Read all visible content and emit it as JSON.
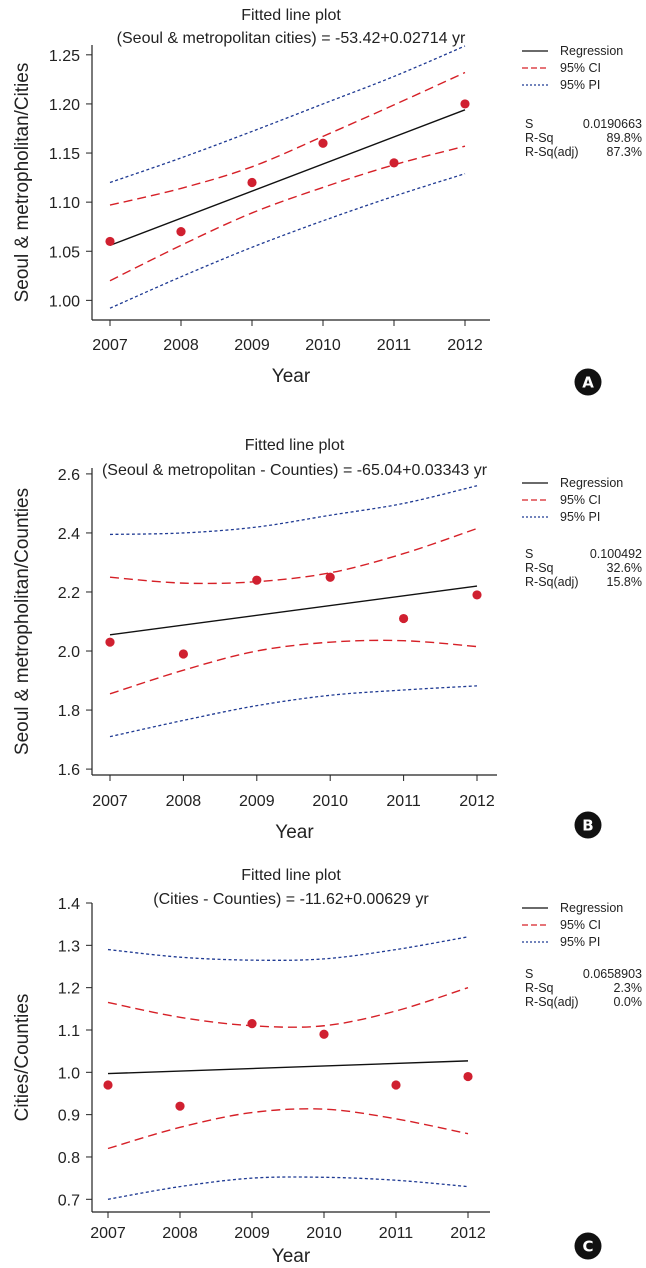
{
  "colors": {
    "regression": "#111111",
    "ci": "#d62027",
    "pi": "#1f3a93",
    "points": "#d02030",
    "badge": "#111111"
  },
  "chart_data": [
    {
      "type": "scatter",
      "badge": "A",
      "title": "Fitted line plot",
      "subtitle": "(Seoul & metropolitan cities) = -53.42+0.02714 yr",
      "xlabel": "Year",
      "ylabel": "Seoul & metropholitan/Cities",
      "x_ticks": [
        "2007",
        "2008",
        "2009",
        "2010",
        "2011",
        "2012"
      ],
      "y_ticks": [
        "1.00",
        "1.05",
        "1.10",
        "1.15",
        "1.20",
        "1.25"
      ],
      "xlim": [
        2007,
        2012
      ],
      "ylim": [
        0.98,
        1.26
      ],
      "points": {
        "x": [
          2007,
          2008,
          2009,
          2010,
          2011,
          2012
        ],
        "y": [
          1.06,
          1.07,
          1.12,
          1.16,
          1.14,
          1.2
        ]
      },
      "regression": {
        "x": [
          2007,
          2012
        ],
        "y": [
          1.056,
          1.194
        ]
      },
      "ci_upper": {
        "x": [
          2007,
          2008,
          2009,
          2010,
          2011,
          2012
        ],
        "y": [
          1.097,
          1.114,
          1.136,
          1.167,
          1.199,
          1.232
        ]
      },
      "ci_lower": {
        "x": [
          2007,
          2008,
          2009,
          2010,
          2011,
          2012
        ],
        "y": [
          1.02,
          1.056,
          1.089,
          1.115,
          1.138,
          1.157
        ]
      },
      "pi_upper": {
        "x": [
          2007,
          2008,
          2009,
          2010,
          2011,
          2012
        ],
        "y": [
          1.12,
          1.145,
          1.172,
          1.2,
          1.228,
          1.259
        ]
      },
      "pi_lower": {
        "x": [
          2007,
          2008,
          2009,
          2010,
          2011,
          2012
        ],
        "y": [
          0.992,
          1.024,
          1.054,
          1.081,
          1.106,
          1.129
        ]
      },
      "legend": [
        {
          "label": "Regression",
          "style": "solid"
        },
        {
          "label": "95% CI",
          "style": "dash"
        },
        {
          "label": "95% PI",
          "style": "dot"
        }
      ],
      "stats": [
        {
          "label": "S",
          "value": "0.0190663"
        },
        {
          "label": "R-Sq",
          "value": "89.8%"
        },
        {
          "label": "R-Sq(adj)",
          "value": "87.3%"
        }
      ]
    },
    {
      "type": "scatter",
      "badge": "B",
      "title": "Fitted line plot",
      "subtitle": "(Seoul & metropolitan - Counties) = -65.04+0.03343 yr",
      "xlabel": "Year",
      "ylabel": "Seoul & metropholitan/Counties",
      "x_ticks": [
        "2007",
        "2008",
        "2009",
        "2010",
        "2011",
        "2012"
      ],
      "y_ticks": [
        "1.6",
        "1.8",
        "2.0",
        "2.2",
        "2.4",
        "2.6"
      ],
      "xlim": [
        2007,
        2012
      ],
      "ylim": [
        1.58,
        2.62
      ],
      "points": {
        "x": [
          2007,
          2008,
          2009,
          2010,
          2011,
          2012
        ],
        "y": [
          2.03,
          1.99,
          2.24,
          2.25,
          2.11,
          2.19
        ]
      },
      "regression": {
        "x": [
          2007,
          2012
        ],
        "y": [
          2.055,
          2.22
        ]
      },
      "ci_upper": {
        "x": [
          2007,
          2008,
          2009,
          2010,
          2011,
          2012
        ],
        "y": [
          2.25,
          2.23,
          2.235,
          2.265,
          2.33,
          2.415
        ]
      },
      "ci_lower": {
        "x": [
          2007,
          2008,
          2009,
          2010,
          2011,
          2012
        ],
        "y": [
          1.855,
          1.935,
          2.0,
          2.03,
          2.035,
          2.015
        ]
      },
      "pi_upper": {
        "x": [
          2007,
          2008,
          2009,
          2010,
          2011,
          2012
        ],
        "y": [
          2.395,
          2.4,
          2.42,
          2.46,
          2.5,
          2.56
        ]
      },
      "pi_lower": {
        "x": [
          2007,
          2008,
          2009,
          2010,
          2011,
          2012
        ],
        "y": [
          1.71,
          1.765,
          1.815,
          1.85,
          1.868,
          1.882
        ]
      },
      "legend": [
        {
          "label": "Regression",
          "style": "solid"
        },
        {
          "label": "95% CI",
          "style": "dash"
        },
        {
          "label": "95% PI",
          "style": "dot"
        }
      ],
      "stats": [
        {
          "label": "S",
          "value": "0.100492"
        },
        {
          "label": "R-Sq",
          "value": "32.6%"
        },
        {
          "label": "R-Sq(adj)",
          "value": "15.8%"
        }
      ]
    },
    {
      "type": "scatter",
      "badge": "C",
      "title": "Fitted line plot",
      "subtitle": "(Cities - Counties) = -11.62+0.00629 yr",
      "xlabel": "Year",
      "ylabel": "Cities/Counties",
      "x_ticks": [
        "2007",
        "2008",
        "2009",
        "2010",
        "2011",
        "2012"
      ],
      "y_ticks": [
        "0.7",
        "0.8",
        "0.9",
        "1.0",
        "1.1",
        "1.2",
        "1.3",
        "1.4"
      ],
      "xlim": [
        2007,
        2012
      ],
      "ylim": [
        0.67,
        1.4
      ],
      "points": {
        "x": [
          2007,
          2008,
          2009,
          2010,
          2011,
          2012
        ],
        "y": [
          0.97,
          0.92,
          1.115,
          1.09,
          0.97,
          0.99
        ]
      },
      "regression": {
        "x": [
          2007,
          2012
        ],
        "y": [
          0.997,
          1.027
        ]
      },
      "ci_upper": {
        "x": [
          2007,
          2008,
          2009,
          2010,
          2011,
          2012
        ],
        "y": [
          1.165,
          1.13,
          1.11,
          1.11,
          1.145,
          1.2
        ]
      },
      "ci_lower": {
        "x": [
          2007,
          2008,
          2009,
          2010,
          2011,
          2012
        ],
        "y": [
          0.82,
          0.87,
          0.905,
          0.913,
          0.89,
          0.855
        ]
      },
      "pi_upper": {
        "x": [
          2007,
          2008,
          2009,
          2010,
          2011,
          2012
        ],
        "y": [
          1.29,
          1.272,
          1.265,
          1.268,
          1.29,
          1.32
        ]
      },
      "pi_lower": {
        "x": [
          2007,
          2008,
          2009,
          2010,
          2011,
          2012
        ],
        "y": [
          0.7,
          0.73,
          0.75,
          0.752,
          0.745,
          0.73
        ]
      },
      "legend": [
        {
          "label": "Regression",
          "style": "solid"
        },
        {
          "label": "95% CI",
          "style": "dash"
        },
        {
          "label": "95% PI",
          "style": "dot"
        }
      ],
      "stats": [
        {
          "label": "S",
          "value": "0.0658903"
        },
        {
          "label": "R-Sq",
          "value": "2.3%"
        },
        {
          "label": "R-Sq(adj)",
          "value": "0.0%"
        }
      ]
    }
  ]
}
